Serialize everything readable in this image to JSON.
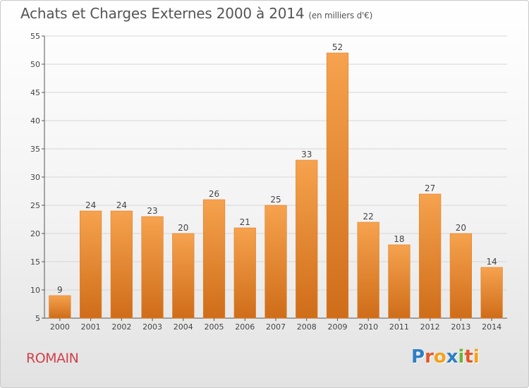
{
  "header": {
    "title": "Achats et Charges Externes 2000 à 2014",
    "subtitle": "(en milliers d'€)"
  },
  "commune": "ROMAIN",
  "logo": {
    "text": "Proxiti",
    "letters": [
      {
        "ch": "P",
        "color": "#2f7fc4"
      },
      {
        "ch": "r",
        "color": "#e0582b"
      },
      {
        "ch": "o",
        "color": "#f2a21a"
      },
      {
        "ch": "x",
        "color": "#2f7fc4"
      },
      {
        "ch": "i",
        "color": "#6fb33a"
      },
      {
        "ch": "t",
        "color": "#e0582b"
      },
      {
        "ch": "i",
        "color": "#f2a21a"
      }
    ]
  },
  "colors": {
    "bar_light": "#f6a24e",
    "bar_dark": "#cf6d19",
    "bar_edge": "#e07f25",
    "grid": "#d6d6d6",
    "axis": "#555555"
  },
  "chart_data": {
    "type": "bar",
    "categories": [
      "2000",
      "2001",
      "2002",
      "2003",
      "2004",
      "2005",
      "2006",
      "2007",
      "2008",
      "2009",
      "2010",
      "2011",
      "2012",
      "2013",
      "2014"
    ],
    "values": [
      9,
      24,
      24,
      23,
      20,
      26,
      21,
      25,
      33,
      52,
      22,
      18,
      27,
      20,
      14
    ],
    "title": "Achats et Charges Externes 2000 à 2014",
    "ylim": [
      5,
      55
    ],
    "yticks": [
      5,
      10,
      15,
      20,
      25,
      30,
      35,
      40,
      45,
      50,
      55
    ],
    "grid": true,
    "data_labels": true
  }
}
